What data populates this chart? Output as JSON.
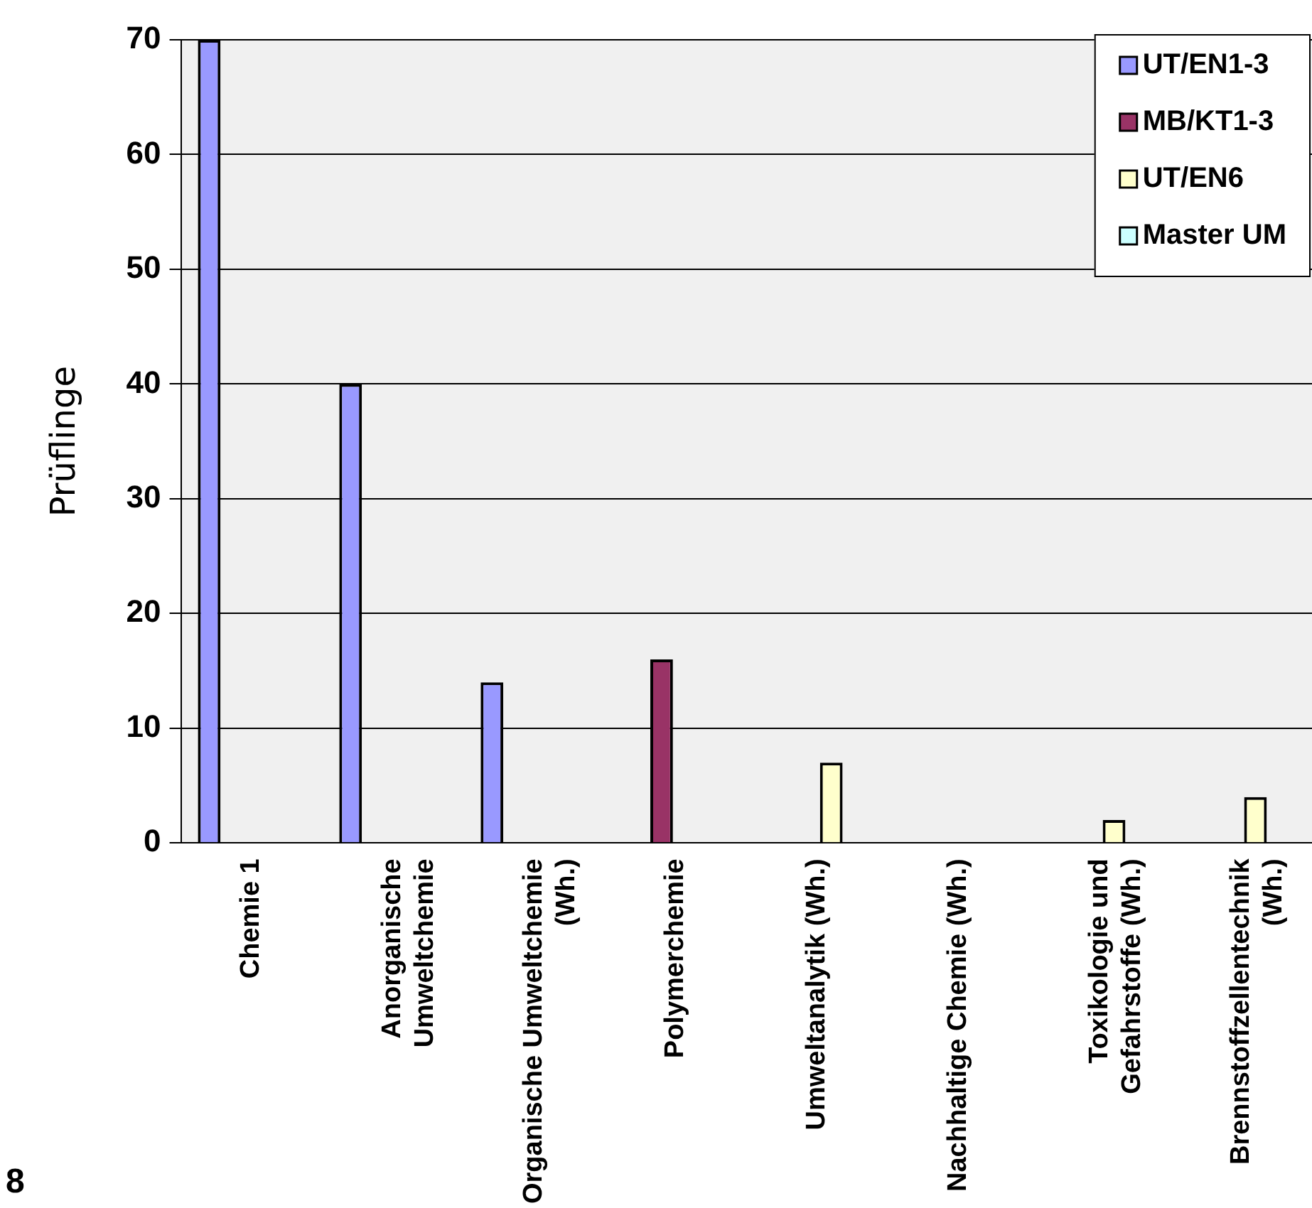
{
  "chart_data": {
    "type": "bar",
    "ylabel": "Prüflinge",
    "categories": [
      "Chemie 1",
      "Anorganische Umweltchemie",
      "Organische Umweltchemie (Wh.)",
      "Polymerchemie",
      "Umweltanalytik (Wh.)",
      "Nachhaltige Chemie (Wh.)",
      "Toxikologie und Gefahrstoffe (Wh.)",
      "Brennstoffzellentechnik (Wh.)"
    ],
    "series": [
      {
        "name": "UT/EN1-3",
        "color": "#9999ff",
        "values": [
          70,
          40,
          14,
          null,
          null,
          null,
          null,
          null
        ]
      },
      {
        "name": "MB/KT1-3",
        "color": "#993366",
        "values": [
          null,
          null,
          null,
          16,
          null,
          null,
          null,
          null
        ]
      },
      {
        "name": "UT/EN6",
        "color": "#ffffcc",
        "values": [
          null,
          null,
          null,
          null,
          7,
          null,
          2,
          4
        ]
      },
      {
        "name": "Master UM",
        "color": "#ccffff",
        "values": [
          null,
          null,
          null,
          null,
          null,
          null,
          null,
          null
        ]
      }
    ],
    "ylim": [
      0,
      70
    ],
    "yticks": [
      0,
      10,
      20,
      30,
      40,
      50,
      60,
      70
    ],
    "grid": "y",
    "legend": "top right",
    "annotations": [
      "8"
    ]
  }
}
